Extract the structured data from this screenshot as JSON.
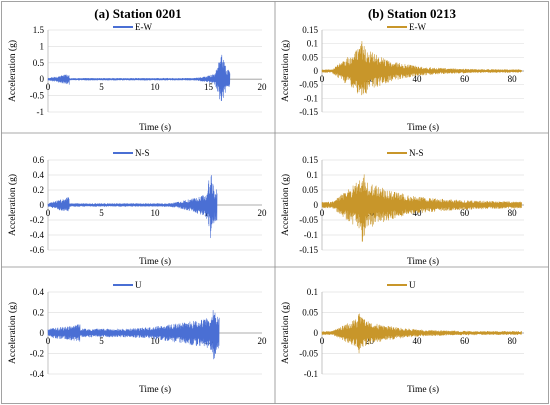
{
  "column_titles": [
    "(a) Station 0201",
    "(b) Station 0213"
  ],
  "chart_data": [
    {
      "type": "line",
      "station": "0201",
      "component": "E-W",
      "series": [
        {
          "name": "E-W",
          "color": "#4a6fd4"
        }
      ],
      "xlabel": "Time (s)",
      "ylabel": "Acceleration (g)",
      "xlim": [
        0,
        20
      ],
      "ylim": [
        -1,
        1.5
      ],
      "xticks": [
        0,
        5,
        10,
        15,
        20
      ],
      "yticks": [
        -1,
        -0.5,
        0,
        0.5,
        1,
        1.5
      ],
      "ytick_labels": [
        "-1",
        "-0.5",
        "0",
        "0.5",
        "1",
        "1.5"
      ],
      "signal": {
        "duration": 17.0,
        "peak_time": 16.2,
        "peak_amp": 0.9,
        "base_amp": 0.03,
        "growth_start": 13.5,
        "growth_amp": 0.3,
        "ramp_from": 0,
        "ramp_to": 2,
        "decay": 0
      },
      "grid": true
    },
    {
      "type": "line",
      "station": "0213",
      "component": "E-W",
      "series": [
        {
          "name": "E-W",
          "color": "#c8962a"
        }
      ],
      "xlabel": "Time (s)",
      "ylabel": "Acceleration (g)",
      "xlim": [
        0,
        85
      ],
      "ylim": [
        -0.15,
        0.15
      ],
      "xticks": [
        0,
        20,
        40,
        60,
        80
      ],
      "yticks": [
        -0.15,
        -0.1,
        -0.05,
        0,
        0.05,
        0.1,
        0.15
      ],
      "ytick_labels": [
        "-0.15",
        "-0.1",
        "-0.05",
        "0",
        "0.05",
        "0.1",
        "0.15"
      ],
      "signal": {
        "duration": 84,
        "peak_time": 17,
        "peak_amp": 0.12,
        "base_amp": 0.005,
        "growth_start": 4,
        "growth_amp": 0.09,
        "ramp_from": 4,
        "ramp_to": 14,
        "decay": 12
      },
      "grid": true
    },
    {
      "type": "line",
      "station": "0201",
      "component": "N-S",
      "series": [
        {
          "name": "N-S",
          "color": "#4a6fd4"
        }
      ],
      "xlabel": "Time (s)",
      "ylabel": "Acceleration (g)",
      "xlim": [
        0,
        20
      ],
      "ylim": [
        -0.6,
        0.6
      ],
      "xticks": [
        0,
        5,
        10,
        15,
        20
      ],
      "yticks": [
        -0.6,
        -0.4,
        -0.2,
        0,
        0.2,
        0.4,
        0.6
      ],
      "ytick_labels": [
        "-0.6",
        "-0.4",
        "-0.2",
        "0",
        "0.2",
        "0.4",
        "0.6"
      ],
      "signal": {
        "duration": 15.8,
        "peak_time": 15.2,
        "peak_amp": 0.45,
        "base_amp": 0.02,
        "growth_start": 11,
        "growth_amp": 0.2,
        "ramp_from": 0,
        "ramp_to": 2,
        "decay": 0
      },
      "grid": true
    },
    {
      "type": "line",
      "station": "0213",
      "component": "N-S",
      "series": [
        {
          "name": "N-S",
          "color": "#c8962a"
        }
      ],
      "xlabel": "Time (s)",
      "ylabel": "Acceleration (g)",
      "xlim": [
        0,
        85
      ],
      "ylim": [
        -0.15,
        0.15
      ],
      "xticks": [
        0,
        20,
        40,
        60,
        80
      ],
      "yticks": [
        -0.15,
        -0.1,
        -0.05,
        0,
        0.05,
        0.1,
        0.15
      ],
      "ytick_labels": [
        "-0.15",
        "-0.1",
        "-0.05",
        "0",
        "0.05",
        "0.1",
        "0.15"
      ],
      "signal": {
        "duration": 84,
        "peak_time": 17,
        "peak_amp": 0.13,
        "base_amp": 0.01,
        "growth_start": 4,
        "growth_amp": 0.08,
        "ramp_from": 4,
        "ramp_to": 14,
        "decay": 16
      },
      "grid": true
    },
    {
      "type": "line",
      "station": "0201",
      "component": "U",
      "series": [
        {
          "name": "U",
          "color": "#4a6fd4"
        }
      ],
      "xlabel": "Time (s)",
      "ylabel": "Acceleration (g)",
      "xlim": [
        0,
        20
      ],
      "ylim": [
        -0.4,
        0.4
      ],
      "xticks": [
        0,
        5,
        10,
        15,
        20
      ],
      "yticks": [
        -0.4,
        -0.2,
        0,
        0.2,
        0.4
      ],
      "ytick_labels": [
        "-0.4",
        "-0.2",
        "0",
        "0.2",
        "0.4"
      ],
      "signal": {
        "duration": 16.0,
        "peak_time": 15.5,
        "peak_amp": 0.25,
        "base_amp": 0.04,
        "growth_start": 7,
        "growth_amp": 0.13,
        "ramp_from": 0,
        "ramp_to": 3,
        "decay": 0
      },
      "grid": true
    },
    {
      "type": "line",
      "station": "0213",
      "component": "U",
      "series": [
        {
          "name": "U",
          "color": "#c8962a"
        }
      ],
      "xlabel": "Time (s)",
      "ylabel": "Acceleration (g)",
      "xlim": [
        0,
        85
      ],
      "ylim": [
        -0.1,
        0.1
      ],
      "xticks": [
        0,
        20,
        40,
        60,
        80
      ],
      "yticks": [
        -0.1,
        -0.05,
        0,
        0.05,
        0.1
      ],
      "ytick_labels": [
        "-0.1",
        "-0.05",
        "0",
        "0.05",
        "0.1"
      ],
      "signal": {
        "duration": 84,
        "peak_time": 16,
        "peak_amp": 0.055,
        "base_amp": 0.004,
        "growth_start": 4,
        "growth_amp": 0.035,
        "ramp_from": 4,
        "ramp_to": 12,
        "decay": 12
      },
      "grid": true
    }
  ]
}
